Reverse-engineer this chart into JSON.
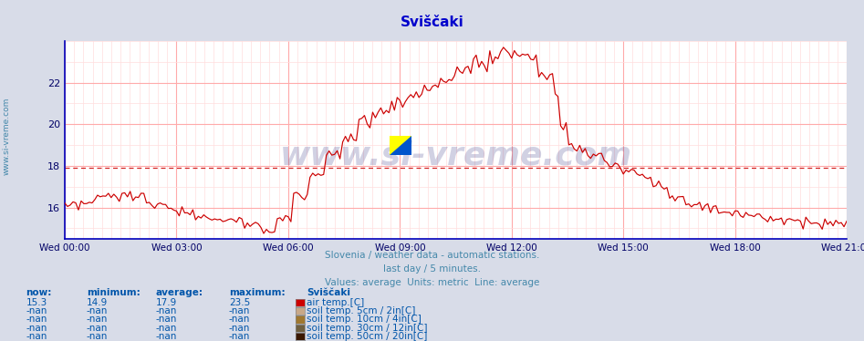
{
  "title": "Sviščaki",
  "title_color": "#0000cc",
  "bg_color": "#d8dce8",
  "plot_bg_color": "#ffffff",
  "grid_color_major": "#ffaaaa",
  "grid_color_minor": "#ffdddd",
  "line_color": "#cc0000",
  "avg_line_color": "#cc0000",
  "avg_value": 17.9,
  "ylim_min": 14.5,
  "ylim_max": 24.0,
  "yticks": [
    16,
    18,
    20,
    22
  ],
  "xlabel_color": "#000066",
  "ylabel_color": "#000066",
  "watermark": "www.si-vreme.com",
  "watermark_color": "#000066",
  "watermark_alpha": 0.18,
  "subtitle1": "Slovenia / weather data - automatic stations.",
  "subtitle2": "last day / 5 minutes.",
  "subtitle3": "Values: average  Units: metric  Line: average",
  "subtitle_color": "#4488aa",
  "legend_headers": [
    "now:",
    "minimum:",
    "average:",
    "maximum:",
    "Sviščaki"
  ],
  "legend_row1": [
    "15.3",
    "14.9",
    "17.9",
    "23.5",
    "air temp.[C]"
  ],
  "legend_row2": [
    "-nan",
    "-nan",
    "-nan",
    "-nan",
    "soil temp. 5cm / 2in[C]"
  ],
  "legend_row3": [
    "-nan",
    "-nan",
    "-nan",
    "-nan",
    "soil temp. 10cm / 4in[C]"
  ],
  "legend_row4": [
    "-nan",
    "-nan",
    "-nan",
    "-nan",
    "soil temp. 30cm / 12in[C]"
  ],
  "legend_row5": [
    "-nan",
    "-nan",
    "-nan",
    "-nan",
    "soil temp. 50cm / 20in[C]"
  ],
  "legend_colors": [
    "#cc0000",
    "#c8a888",
    "#a07830",
    "#706040",
    "#3a1800"
  ],
  "left_label": "www.si-vreme.com",
  "left_label_color": "#4488aa",
  "xtick_labels": [
    "Wed 00:00",
    "Wed 03:00",
    "Wed 06:00",
    "Wed 09:00",
    "Wed 12:00",
    "Wed 15:00",
    "Wed 18:00",
    "Wed 21:00"
  ],
  "xtick_positions": [
    0,
    36,
    72,
    108,
    144,
    180,
    216,
    252
  ],
  "n_points": 288
}
